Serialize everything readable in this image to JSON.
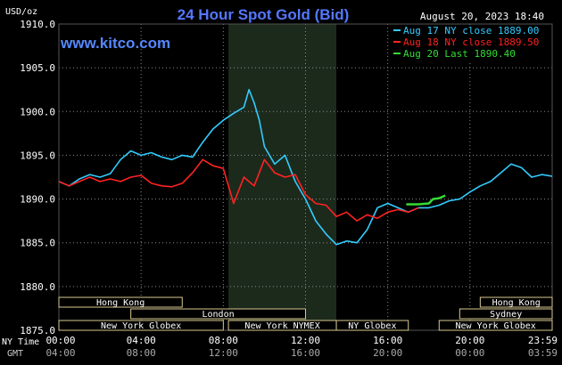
{
  "header": {
    "title": "24 Hour Spot Gold (Bid)",
    "unit": "USD/oz",
    "site": "www.kitco.com",
    "date": "August 20, 2023 18:40"
  },
  "legend": [
    {
      "label": "Aug 17 NY close 1889.00",
      "color": "#33ccff"
    },
    {
      "label": "Aug 18 NY close 1889.50",
      "color": "#ff2222"
    },
    {
      "label": "Aug 20 Last 1890.40",
      "color": "#33dd33"
    }
  ],
  "axis_bottom": {
    "row1_label": "NY Time",
    "row2_label": "GMT",
    "row1_ticks": [
      "00:00",
      "04:00",
      "08:00",
      "12:00",
      "16:00",
      "20:00",
      "23:59"
    ],
    "row2_ticks": [
      "04:00",
      "08:00",
      "12:00",
      "16:00",
      "20:00",
      "00:00",
      "03:59"
    ]
  },
  "sessions": [
    {
      "label": "Hong Kong",
      "start": 0,
      "end": 6
    },
    {
      "label": "London",
      "start": 3.5,
      "end": 12
    },
    {
      "label": "New York Globex",
      "start": 0,
      "end": 8
    },
    {
      "label": "New York NYMEX",
      "start": 8.25,
      "end": 13.5
    },
    {
      "label": "NY Globex",
      "start": 13.5,
      "end": 17
    },
    {
      "label": "Hong Kong",
      "start": 20.5,
      "end": 24
    },
    {
      "label": "Sydney",
      "start": 19.5,
      "end": 24
    },
    {
      "label": "New York Globex",
      "start": 18.5,
      "end": 24
    }
  ],
  "chart_data": {
    "type": "line",
    "title": "24 Hour Spot Gold (Bid)",
    "ylabel": "USD/oz",
    "xlabel": "NY Time",
    "xlim": [
      0,
      24
    ],
    "ylim": [
      1875,
      1910
    ],
    "yticks": [
      1875,
      1880,
      1885,
      1890,
      1895,
      1900,
      1905,
      1910
    ],
    "xticks": [
      0,
      4,
      8,
      12,
      16,
      20,
      24
    ],
    "xtick_labels": [
      "00:00",
      "04:00",
      "08:00",
      "12:00",
      "16:00",
      "20:00",
      "23:59"
    ],
    "grid": true,
    "shaded_x_range": [
      8.25,
      13.5
    ],
    "legend_position": "top-right",
    "series": [
      {
        "name": "Aug 17 NY close 1889.00",
        "color": "#33ccff",
        "x": [
          0,
          0.5,
          1,
          1.5,
          2,
          2.5,
          3,
          3.5,
          4,
          4.5,
          5,
          5.5,
          6,
          6.5,
          7,
          7.5,
          8,
          8.5,
          9,
          9.25,
          9.5,
          9.75,
          10,
          10.5,
          11,
          11.5,
          12,
          12.5,
          13,
          13.5,
          14,
          14.5,
          15,
          15.5,
          16,
          16.5,
          17,
          17.5,
          18,
          18.5,
          19,
          19.5,
          20,
          20.5,
          21,
          21.5,
          22,
          22.5,
          23,
          23.5,
          24
        ],
        "y": [
          1892,
          1891.5,
          1892.3,
          1892.8,
          1892.5,
          1892.9,
          1894.5,
          1895.5,
          1895,
          1895.3,
          1894.8,
          1894.5,
          1895,
          1894.8,
          1896.5,
          1898,
          1899,
          1899.8,
          1900.5,
          1902.5,
          1901,
          1899,
          1896,
          1894,
          1895,
          1892,
          1890,
          1887.5,
          1886,
          1884.8,
          1885.2,
          1885,
          1886.5,
          1889,
          1889.5,
          1889,
          1888.5,
          1889,
          1889,
          1889.3,
          1889.8,
          1890,
          1890.8,
          1891.5,
          1892,
          1893,
          1894,
          1893.6,
          1892.5,
          1892.8,
          1892.6
        ]
      },
      {
        "name": "Aug 18 NY close 1889.50",
        "color": "#ff2222",
        "x": [
          0,
          0.5,
          1,
          1.5,
          2,
          2.5,
          3,
          3.5,
          4,
          4.5,
          5,
          5.5,
          6,
          6.5,
          7,
          7.5,
          8,
          8.5,
          9,
          9.5,
          10,
          10.5,
          11,
          11.5,
          12,
          12.5,
          13,
          13.5,
          14,
          14.5,
          15,
          15.5,
          16,
          16.5,
          17,
          17.5
        ],
        "y": [
          1892,
          1891.5,
          1892,
          1892.5,
          1892,
          1892.3,
          1892,
          1892.5,
          1892.7,
          1891.8,
          1891.5,
          1891.4,
          1891.8,
          1893,
          1894.5,
          1893.8,
          1893.5,
          1889.5,
          1892.5,
          1891.5,
          1894.5,
          1893,
          1892.5,
          1892.8,
          1890.5,
          1889.5,
          1889.3,
          1888,
          1888.5,
          1887.5,
          1888.2,
          1887.8,
          1888.5,
          1888.8,
          1888.5,
          1889
        ]
      },
      {
        "name": "Aug 20 Last 1890.40",
        "color": "#33dd33",
        "x": [
          16.9,
          17.5,
          18,
          18.2,
          18.5,
          18.8
        ],
        "y": [
          1889.4,
          1889.4,
          1889.5,
          1890,
          1890.1,
          1890.4
        ]
      }
    ]
  }
}
